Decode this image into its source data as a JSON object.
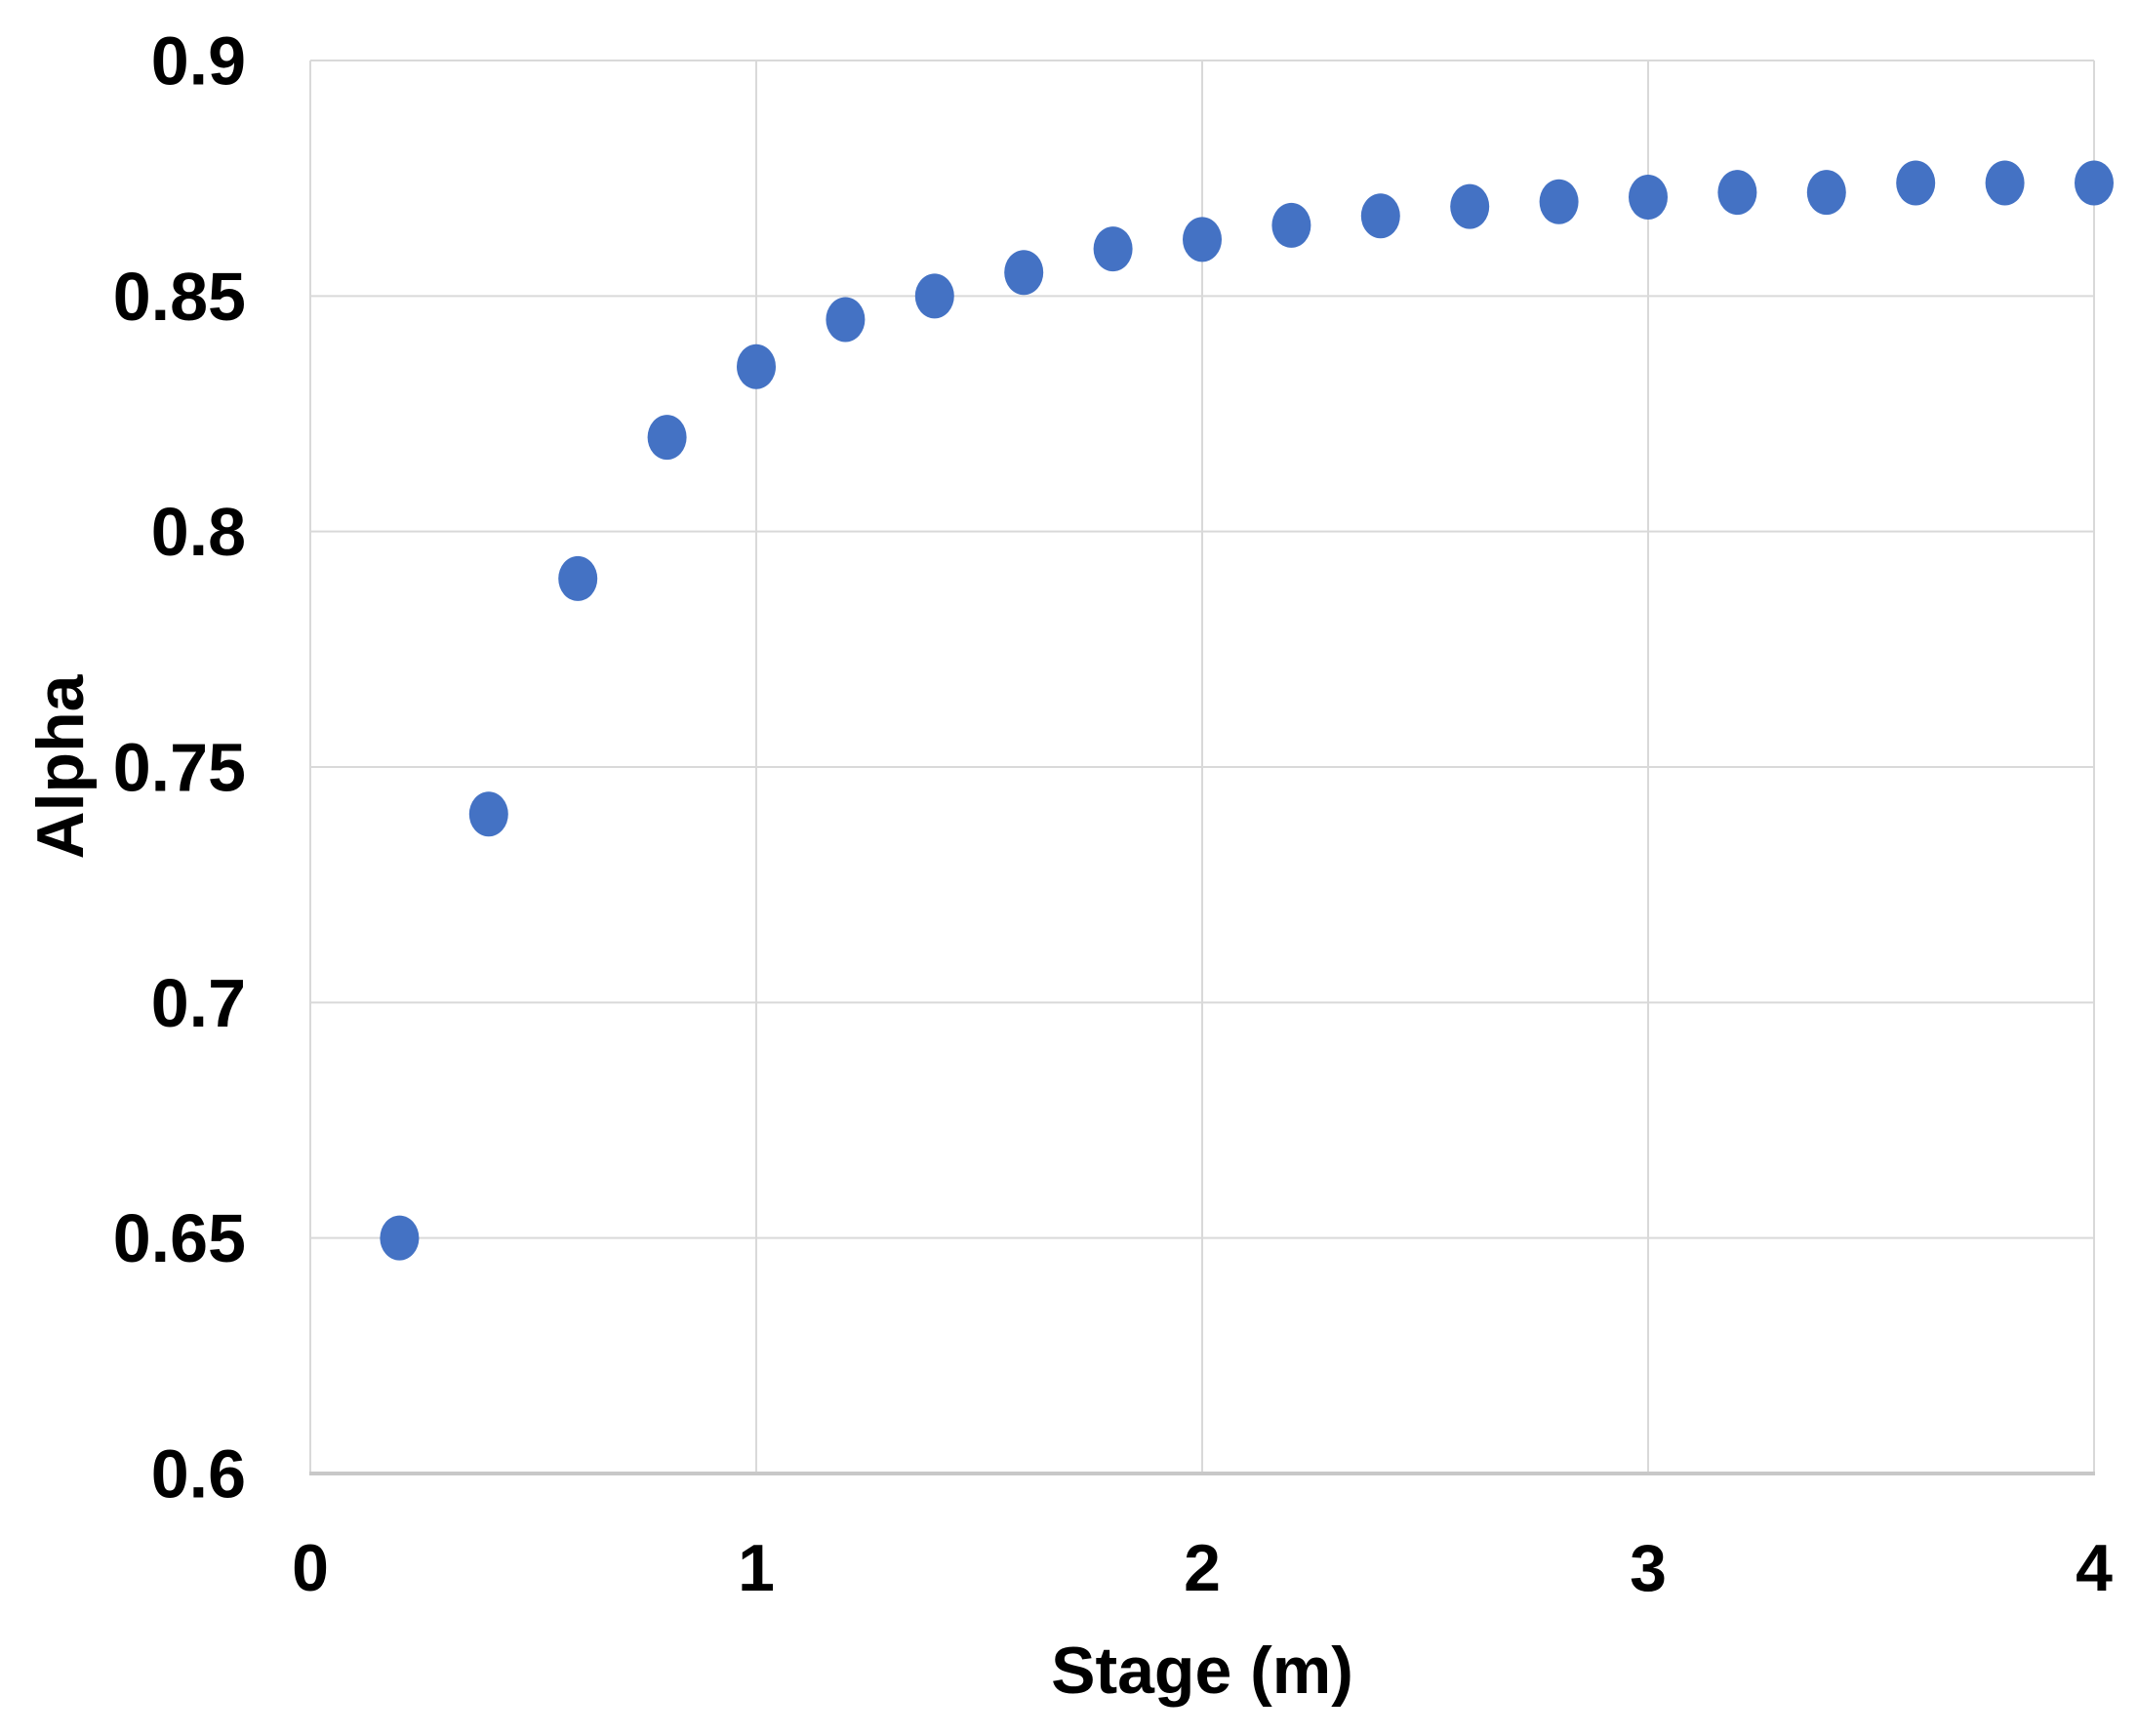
{
  "chart_data": {
    "type": "scatter",
    "title": "",
    "xlabel": "Stage (m)",
    "ylabel": "Alpha",
    "xlim": [
      0,
      4
    ],
    "ylim": [
      0.6,
      0.9
    ],
    "x_ticks": {
      "values": [
        0,
        1,
        2,
        3,
        4
      ],
      "labels": [
        "0",
        "1",
        "2",
        "3",
        "4"
      ]
    },
    "y_ticks": {
      "values": [
        0.6,
        0.65,
        0.7,
        0.75,
        0.8,
        0.85,
        0.9
      ],
      "labels": [
        "0.6",
        "0.65",
        "0.7",
        "0.75",
        "0.8",
        "0.85",
        "0.9"
      ]
    },
    "grid": true,
    "legend": false,
    "series": [
      {
        "marker": "circle",
        "color": "#4472C4",
        "x": [
          0.2,
          0.4,
          0.6,
          0.8,
          1.0,
          1.2,
          1.4,
          1.6,
          1.8,
          2.0,
          2.2,
          2.4,
          2.6,
          2.8,
          3.0,
          3.2,
          3.4,
          3.6,
          3.8,
          4.0
        ],
        "y": [
          0.65,
          0.74,
          0.79,
          0.82,
          0.835,
          0.845,
          0.85,
          0.855,
          0.86,
          0.862,
          0.865,
          0.867,
          0.869,
          0.87,
          0.871,
          0.872,
          0.872,
          0.874,
          0.874,
          0.874
        ]
      }
    ],
    "colors": {
      "point": "#4472C4",
      "gridline": "#D9D9D9",
      "axis_line": "#C8C8C8",
      "text": "#000000",
      "background": "#FFFFFF"
    }
  }
}
